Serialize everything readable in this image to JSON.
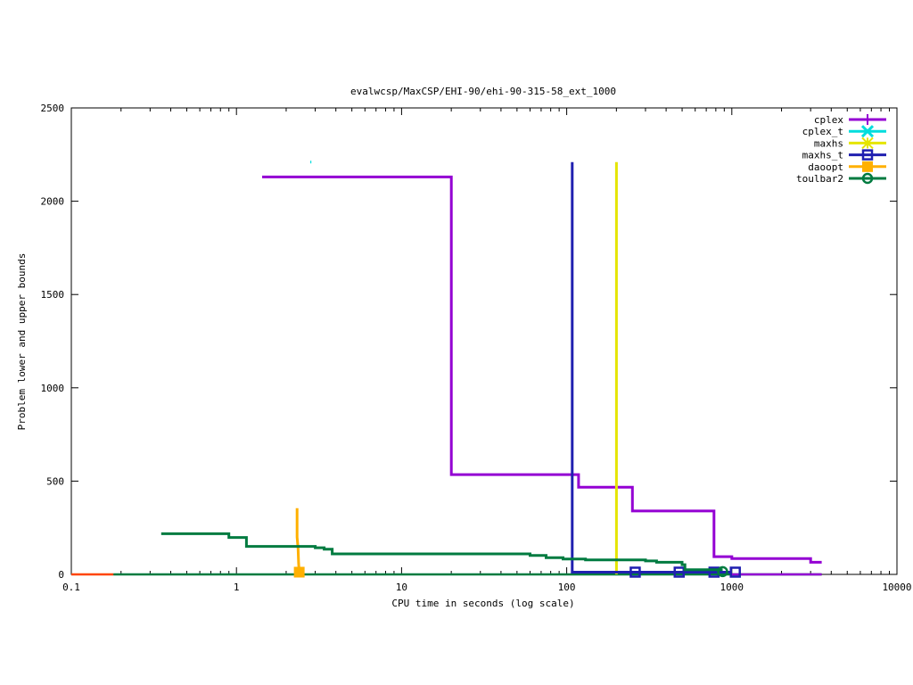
{
  "chart_data": {
    "type": "line",
    "title": "evalwcsp/MaxCSP/EHI-90/ehi-90-315-58_ext_1000",
    "xlabel": "CPU time in seconds (log scale)",
    "ylabel": "Problem lower and upper bounds",
    "xscale": "log",
    "xlim": [
      0.1,
      10000
    ],
    "ylim": [
      0,
      2500
    ],
    "xticks": [
      {
        "v": 0.1,
        "label": "0.1"
      },
      {
        "v": 1,
        "label": "1"
      },
      {
        "v": 10,
        "label": "10"
      },
      {
        "v": 100,
        "label": "100"
      },
      {
        "v": 1000,
        "label": "1000"
      },
      {
        "v": 10000,
        "label": "10000"
      }
    ],
    "yticks": [
      {
        "v": 0,
        "label": "0"
      },
      {
        "v": 500,
        "label": "500"
      },
      {
        "v": 1000,
        "label": "1000"
      },
      {
        "v": 1500,
        "label": "1500"
      },
      {
        "v": 2000,
        "label": "2000"
      },
      {
        "v": 2500,
        "label": "2500"
      }
    ],
    "legend_position": "top-right",
    "series": [
      {
        "name": "cplex",
        "color": "#9400d3",
        "marker": "plus",
        "points": [
          [
            1.43,
            2130
          ],
          [
            20,
            2130
          ],
          [
            20,
            535
          ],
          [
            118,
            535
          ],
          [
            118,
            467
          ],
          [
            250,
            467
          ],
          [
            250,
            340
          ],
          [
            780,
            340
          ],
          [
            780,
            95
          ],
          [
            1000,
            95
          ],
          [
            1000,
            85
          ],
          [
            3000,
            85
          ],
          [
            3000,
            65
          ],
          [
            3500,
            65
          ]
        ],
        "marks": []
      },
      {
        "name": "cplex_t",
        "color": "#00dddd",
        "marker": "cross",
        "points": [
          [
            2.8,
            2210
          ],
          [
            2.84,
            2210
          ]
        ],
        "marks": []
      },
      {
        "name": "maxhs",
        "color": "#e5e500",
        "marker": "star",
        "points": [
          [
            200,
            2210
          ],
          [
            200,
            0
          ]
        ],
        "marks": []
      },
      {
        "name": "maxhs_t",
        "color": "#2020b0",
        "marker": "square",
        "points": [
          [
            108,
            2210
          ],
          [
            108,
            12
          ],
          [
            1000,
            12
          ]
        ],
        "marks": [
          [
            260,
            12
          ],
          [
            480,
            12
          ],
          [
            780,
            12
          ],
          [
            1050,
            12
          ]
        ]
      },
      {
        "name": "daoopt",
        "color": "#ffb000",
        "marker": "filled-square",
        "points": [
          [
            2.33,
            355
          ],
          [
            2.33,
            200
          ],
          [
            2.36,
            140
          ],
          [
            2.38,
            60
          ],
          [
            2.4,
            10
          ]
        ],
        "marks": [
          [
            2.4,
            12
          ]
        ]
      },
      {
        "name": "toulbar2",
        "color": "#007b40",
        "marker": "circle",
        "points": [
          [
            0.35,
            218
          ],
          [
            0.9,
            218
          ],
          [
            0.9,
            198
          ],
          [
            1.15,
            198
          ],
          [
            1.15,
            150
          ],
          [
            3.0,
            150
          ],
          [
            3.0,
            143
          ],
          [
            3.4,
            143
          ],
          [
            3.4,
            135
          ],
          [
            3.8,
            135
          ],
          [
            3.8,
            110
          ],
          [
            60,
            110
          ],
          [
            60,
            102
          ],
          [
            75,
            102
          ],
          [
            75,
            90
          ],
          [
            95,
            90
          ],
          [
            95,
            82
          ],
          [
            130,
            82
          ],
          [
            130,
            78
          ],
          [
            300,
            78
          ],
          [
            300,
            72
          ],
          [
            350,
            72
          ],
          [
            350,
            65
          ],
          [
            500,
            65
          ],
          [
            500,
            52
          ],
          [
            520,
            52
          ],
          [
            520,
            25
          ],
          [
            880,
            25
          ]
        ],
        "marks": [
          [
            880,
            15
          ]
        ]
      }
    ],
    "lower_bound_lines": [
      {
        "color": "#ff4500",
        "points": [
          [
            0.1,
            0
          ],
          [
            0.18,
            0
          ]
        ]
      },
      {
        "color": "#007b40",
        "points": [
          [
            0.18,
            0
          ],
          [
            3500,
            0
          ]
        ]
      },
      {
        "color": "#9400d3",
        "points": [
          [
            1000,
            0
          ],
          [
            3500,
            0
          ]
        ]
      }
    ]
  }
}
